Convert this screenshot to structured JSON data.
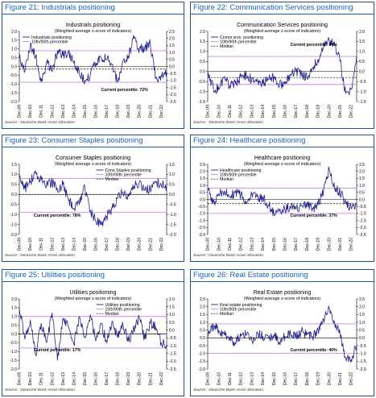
{
  "source": "Source : Deutsche Bank Asset Allocation",
  "colors": {
    "series": "#1f1f8f",
    "pct_band": "#c58ae3",
    "median": "#000000",
    "title_blue": "#1565c0"
  },
  "x_tick_labels": [
    "Dec-09",
    "Dec-10",
    "Dec-11",
    "Dec-12",
    "Dec-13",
    "Dec-14",
    "Dec-15",
    "Dec-16",
    "Dec-17",
    "Dec-18",
    "Dec-19",
    "Dec-20",
    "Dec-21",
    "Dec-22"
  ],
  "panels": [
    {
      "figure_label": "Figure 21: Industrials positioning",
      "chart_data": {
        "type": "line",
        "title": "Industrials positioning",
        "subtitle": "(Weighted average z-score of indicators)",
        "ylim": [
          -2.0,
          2.0
        ],
        "yticks": [
          2.0,
          1.5,
          1.0,
          0.5,
          0.0,
          -0.5,
          -1.0,
          -1.5,
          -2.0
        ],
        "y2lim": [
          -2.5,
          2.5
        ],
        "y2ticks": [
          2.5,
          2.0,
          1.5,
          1.0,
          0.5,
          0.0,
          -0.5,
          -1.0,
          -1.5,
          -2.0,
          -2.5
        ],
        "legend": [
          "Industrials positioning",
          "10th/90th percentile"
        ],
        "legend_position": "top-left",
        "percentile_lines": [
          0.9,
          -0.9
        ],
        "median": -0.15,
        "annotation": "Current percentile: 72%",
        "series": [
          {
            "name": "Industrials positioning",
            "x": [
              "2009-12",
              "2010-06",
              "2010-12",
              "2011-06",
              "2011-12",
              "2012-06",
              "2012-12",
              "2013-06",
              "2013-12",
              "2014-06",
              "2014-12",
              "2015-06",
              "2015-12",
              "2016-06",
              "2016-12",
              "2017-06",
              "2017-12",
              "2018-06",
              "2018-12",
              "2019-06",
              "2019-12",
              "2020-06",
              "2020-12",
              "2021-06",
              "2021-12",
              "2022-06",
              "2022-12",
              "2023-06"
            ],
            "y": [
              0.5,
              -0.3,
              1.2,
              0.6,
              -0.9,
              0.2,
              -0.3,
              0.9,
              0.6,
              0.8,
              0.2,
              -0.4,
              -0.8,
              -0.5,
              0.2,
              0.5,
              0.4,
              0.1,
              -0.9,
              0.3,
              0.6,
              1.6,
              1.0,
              1.1,
              1.3,
              -0.7,
              -0.5,
              -0.3
            ]
          }
        ]
      }
    },
    {
      "figure_label": "Figure 22: Communication Services positioning",
      "chart_data": {
        "type": "line",
        "title": "Communication Services positioning",
        "subtitle": "(Weighted average z-score of indicators)",
        "ylim": [
          -1.5,
          2.0
        ],
        "yticks": [
          2.0,
          1.5,
          1.0,
          0.5,
          0.0,
          -0.5,
          -1.0,
          -1.5
        ],
        "y2lim": [
          -1.5,
          2.0
        ],
        "y2ticks": [
          2.0,
          1.5,
          1.0,
          0.5,
          0.0,
          -0.5,
          -1.0,
          -1.5
        ],
        "legend": [
          "Comm srvs. positioning",
          "10th/90th percentile",
          "Median"
        ],
        "legend_position": "top-left",
        "percentile_lines": [
          0.75,
          -0.65
        ],
        "median": -0.3,
        "annotation": "Current percentile: 84%",
        "series": [
          {
            "name": "Comm srvs. positioning",
            "x": [
              "2009-12",
              "2010-06",
              "2010-12",
              "2011-06",
              "2011-12",
              "2012-06",
              "2012-12",
              "2013-06",
              "2013-12",
              "2014-06",
              "2014-12",
              "2015-06",
              "2015-12",
              "2016-06",
              "2016-12",
              "2017-06",
              "2017-12",
              "2018-06",
              "2018-12",
              "2019-06",
              "2019-12",
              "2020-06",
              "2020-12",
              "2021-06",
              "2021-12",
              "2022-06",
              "2022-12",
              "2023-06"
            ],
            "y": [
              -0.2,
              -0.8,
              -0.9,
              -0.3,
              -0.7,
              -0.6,
              -0.3,
              -0.2,
              -0.4,
              -0.5,
              -0.6,
              -0.4,
              -0.3,
              -0.7,
              -0.5,
              -0.2,
              0.0,
              -0.1,
              -0.3,
              0.2,
              0.6,
              1.2,
              1.6,
              1.3,
              0.5,
              -1.1,
              -0.9,
              0.8
            ]
          }
        ]
      }
    },
    {
      "figure_label": "Figure 23: Consumer Staples positioning",
      "chart_data": {
        "type": "line",
        "title": "Consumer Staples positioning",
        "subtitle": "(Weighted average z-score of indicators)",
        "ylim": [
          -2.0,
          1.5
        ],
        "yticks": [
          1.5,
          1.0,
          0.5,
          0.0,
          -0.5,
          -1.0,
          -1.5,
          -2.0
        ],
        "y2lim": [
          -2.0,
          1.5
        ],
        "y2ticks": [
          1.5,
          1.0,
          0.5,
          0.0,
          -0.5,
          -1.0,
          -1.5,
          -2.0
        ],
        "legend": [
          "Cons Staples positioning",
          "10th/90th percentile",
          "Median"
        ],
        "legend_position": "top-right",
        "percentile_lines": [
          0.8,
          -0.9
        ],
        "median": 0.0,
        "annotation": "Current percentile: 78%",
        "series": [
          {
            "name": "Cons Staples positioning",
            "x": [
              "2009-12",
              "2010-06",
              "2010-12",
              "2011-06",
              "2011-12",
              "2012-06",
              "2012-12",
              "2013-06",
              "2013-12",
              "2014-06",
              "2014-12",
              "2015-06",
              "2015-12",
              "2016-06",
              "2016-12",
              "2017-06",
              "2017-12",
              "2018-06",
              "2018-12",
              "2019-06",
              "2019-12",
              "2020-06",
              "2020-12",
              "2021-06",
              "2021-12",
              "2022-06",
              "2022-12",
              "2023-06"
            ],
            "y": [
              0.9,
              0.3,
              0.6,
              1.1,
              0.7,
              0.5,
              0.6,
              0.2,
              0.5,
              -0.3,
              -0.7,
              -0.5,
              0.4,
              -0.8,
              -1.3,
              -1.5,
              -1.1,
              -0.7,
              -0.2,
              0.1,
              -0.1,
              0.4,
              0.6,
              0.2,
              0.3,
              0.6,
              0.5,
              0.4
            ]
          }
        ]
      }
    },
    {
      "figure_label": "Figure 24: Healthcare positioning",
      "chart_data": {
        "type": "line",
        "title": "Healthcare positioning",
        "subtitle": "(Weighted average z-score of indicators)",
        "ylim": [
          -2.5,
          2.5
        ],
        "yticks": [
          2.5,
          2.0,
          1.5,
          1.0,
          0.5,
          0.0,
          -0.5,
          -1.0,
          -1.5,
          -2.0,
          -2.5
        ],
        "y2lim": [
          -2.5,
          2.5
        ],
        "y2ticks": [
          2.5,
          2.0,
          1.5,
          1.0,
          0.5,
          0.0,
          -0.5,
          -1.0,
          -1.5,
          -2.0,
          -2.5
        ],
        "legend": [
          "Healthcare positioning",
          "10th/90th percentile",
          "Median"
        ],
        "legend_position": "top-left",
        "percentile_lines": [
          0.8,
          -1.0
        ],
        "median": -0.3,
        "annotation": "Current percentile: 37%",
        "series": [
          {
            "name": "Healthcare positioning",
            "x": [
              "2009-12",
              "2010-06",
              "2010-12",
              "2011-06",
              "2011-12",
              "2012-06",
              "2012-12",
              "2013-06",
              "2013-12",
              "2014-06",
              "2014-12",
              "2015-06",
              "2015-12",
              "2016-06",
              "2016-12",
              "2017-06",
              "2017-12",
              "2018-06",
              "2018-12",
              "2019-06",
              "2019-12",
              "2020-06",
              "2020-12",
              "2021-06",
              "2021-12",
              "2022-06",
              "2022-12",
              "2023-06"
            ],
            "y": [
              0.8,
              -0.3,
              0.4,
              0.6,
              0.2,
              0.5,
              0.3,
              -0.2,
              0.4,
              0.2,
              0.1,
              -0.4,
              -1.0,
              -0.8,
              -0.7,
              -0.5,
              -0.7,
              -0.4,
              -0.3,
              -0.6,
              -0.4,
              0.6,
              2.2,
              0.8,
              0.5,
              -0.2,
              -0.6,
              -0.4
            ]
          }
        ]
      }
    },
    {
      "figure_label": "Figure 25: Utilities positioning",
      "chart_data": {
        "type": "line",
        "title": "Utilities positioning",
        "subtitle": "(Weighted average z-score of indicators)",
        "ylim": [
          -2.0,
          2.0
        ],
        "yticks": [
          2.0,
          1.5,
          1.0,
          0.5,
          0.0,
          -0.5,
          -1.0,
          -1.5,
          -2.0
        ],
        "y2lim": [
          -2.5,
          2.0
        ],
        "y2ticks": [
          2.0,
          1.5,
          1.0,
          0.5,
          0.0,
          -0.5,
          -1.0,
          -1.5,
          -2.0,
          -2.5
        ],
        "legend": [
          "Utilities positioning",
          "10th/90th percentile",
          "Median"
        ],
        "legend_position": "top-right",
        "percentile_lines": [
          1.0,
          -0.8
        ],
        "median": 0.0,
        "annotation": "Current percentile: 17%",
        "series": [
          {
            "name": "Utilities positioning",
            "x": [
              "2009-12",
              "2010-06",
              "2010-12",
              "2011-06",
              "2011-12",
              "2012-06",
              "2012-12",
              "2013-06",
              "2013-12",
              "2014-06",
              "2014-12",
              "2015-06",
              "2015-12",
              "2016-06",
              "2016-12",
              "2017-06",
              "2017-12",
              "2018-06",
              "2018-12",
              "2019-06",
              "2019-12",
              "2020-06",
              "2020-12",
              "2021-06",
              "2021-12",
              "2022-06",
              "2022-12",
              "2023-06"
            ],
            "y": [
              1.5,
              -0.3,
              0.8,
              -1.2,
              0.6,
              -0.5,
              1.2,
              -1.5,
              0.9,
              0.4,
              -0.6,
              1.0,
              -0.2,
              1.1,
              -0.4,
              0.6,
              -0.5,
              0.7,
              -0.2,
              0.5,
              -0.4,
              0.3,
              0.9,
              -0.3,
              0.6,
              0.4,
              -0.5,
              -0.6
            ]
          }
        ]
      }
    },
    {
      "figure_label": "Figure 26: Real Estate positioning",
      "chart_data": {
        "type": "line",
        "title": "Real Estate positioning",
        "subtitle": "(Weighted average z-score of indicators)",
        "ylim": [
          -2.0,
          2.5
        ],
        "yticks": [
          2.5,
          2.0,
          1.5,
          1.0,
          0.5,
          0.0,
          -0.5,
          -1.0,
          -1.5,
          -2.0
        ],
        "y2lim": [
          -2.0,
          2.5
        ],
        "y2ticks": [
          2.5,
          2.0,
          1.5,
          1.0,
          0.5,
          0.0,
          -0.5,
          -1.0,
          -1.5,
          -2.0
        ],
        "legend": [
          "Real estate positioning",
          "10th/90th percentile",
          "Median"
        ],
        "legend_position": "top-left",
        "percentile_lines": [
          0.9,
          -1.0
        ],
        "median": 0.0,
        "annotation": "Current percentile: 40%",
        "series": [
          {
            "name": "Real estate positioning",
            "x": [
              "2009-12",
              "2010-06",
              "2010-12",
              "2011-06",
              "2011-12",
              "2012-06",
              "2012-12",
              "2013-06",
              "2013-12",
              "2014-06",
              "2014-12",
              "2015-06",
              "2015-12",
              "2016-06",
              "2016-12",
              "2017-06",
              "2017-12",
              "2018-06",
              "2018-12",
              "2019-06",
              "2019-12",
              "2020-06",
              "2020-12",
              "2021-06",
              "2021-12",
              "2022-06",
              "2022-12",
              "2023-06"
            ],
            "y": [
              0.0,
              0.8,
              0.5,
              0.2,
              -0.1,
              -0.3,
              0.1,
              0.2,
              -0.2,
              0.3,
              0.1,
              0.0,
              0.2,
              -0.3,
              0.1,
              0.3,
              0.1,
              0.4,
              0.2,
              0.1,
              0.5,
              1.2,
              1.9,
              1.0,
              0.2,
              -1.3,
              -1.4,
              -0.5
            ]
          }
        ]
      }
    }
  ]
}
